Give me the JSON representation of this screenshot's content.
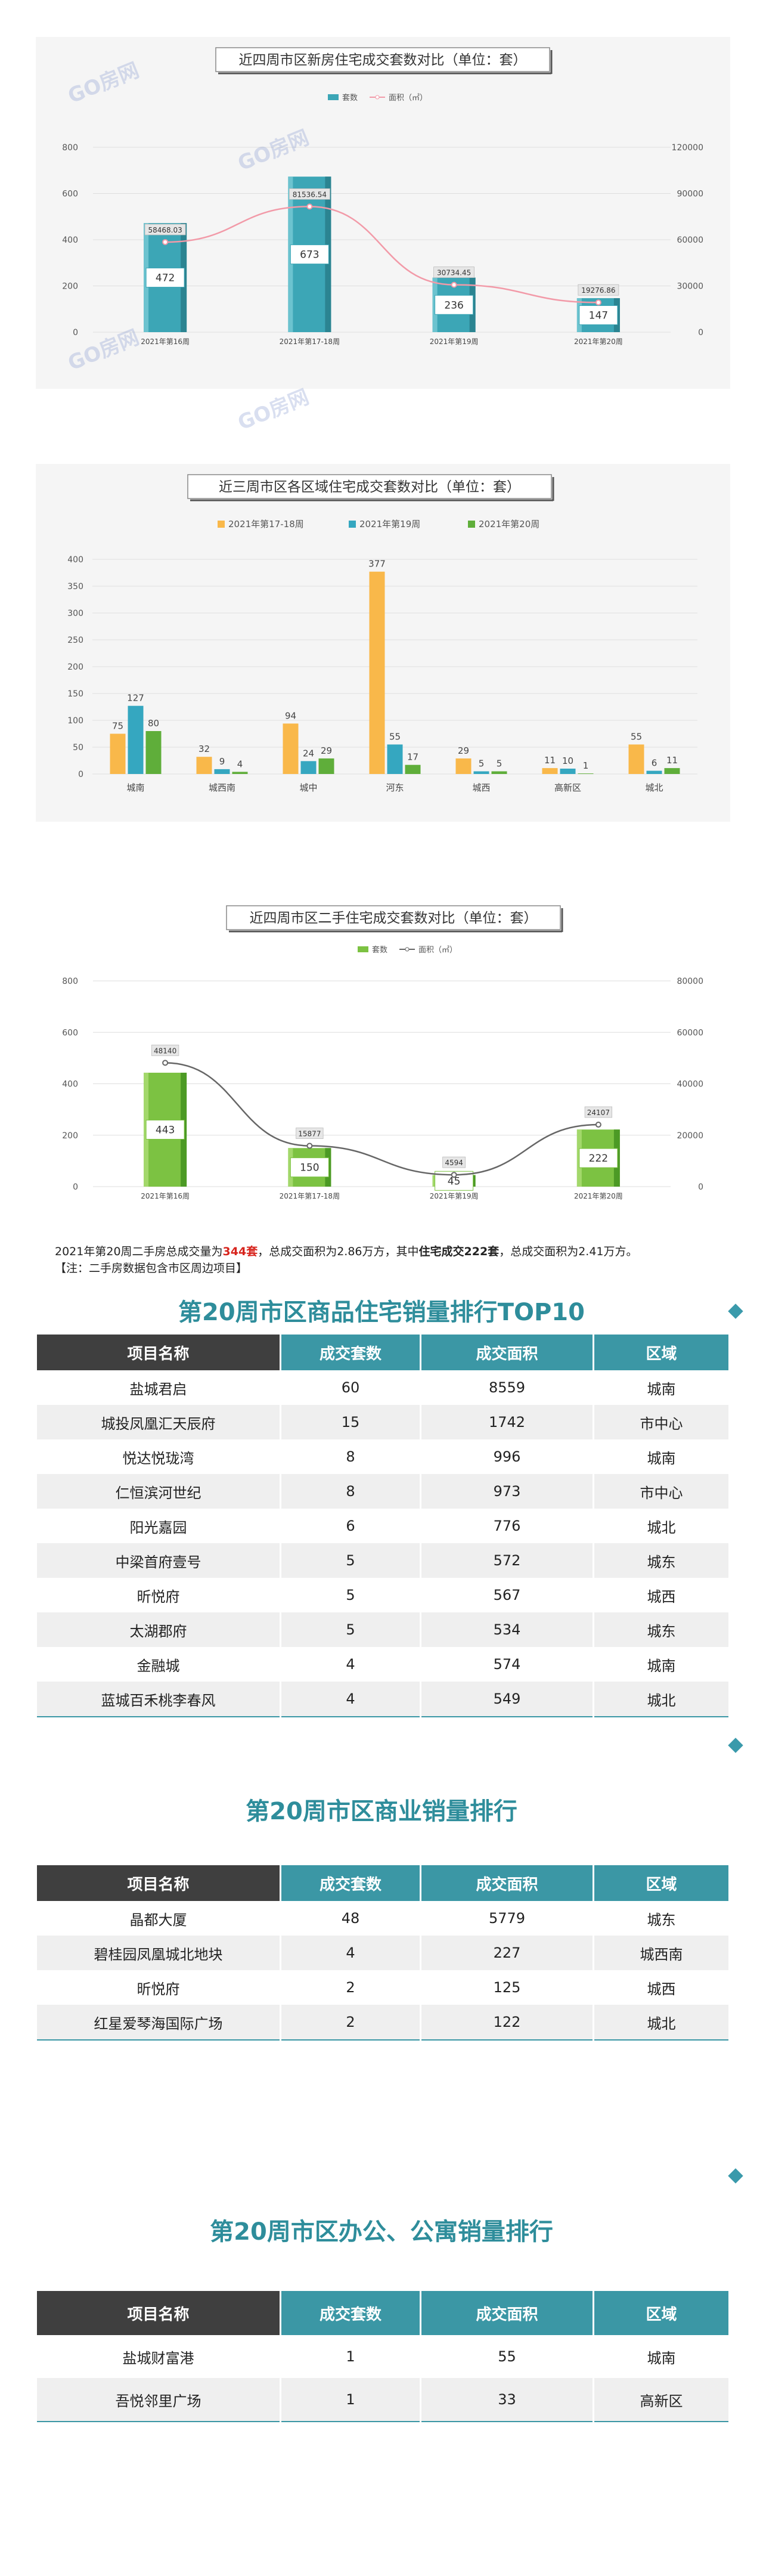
{
  "watermarks": [
    "GO房网",
    "GO房网",
    "GO房网",
    "GO房网"
  ],
  "chart_data": [
    {
      "type": "bar+line",
      "title": "近四周市区新房住宅成交套数对比（单位：套）",
      "categories": [
        "2021年第16周",
        "2021年第17-18周",
        "2021年第19周",
        "2021年第20周"
      ],
      "series": [
        {
          "name": "套数",
          "kind": "bar",
          "values": [
            472,
            673,
            236,
            147
          ],
          "color": "#3ca6b6"
        },
        {
          "name": "面积（㎡）",
          "kind": "line",
          "axis": "right",
          "values": [
            58468.03,
            81536.54,
            30734.45,
            19276.86
          ],
          "color": "#f29aa8"
        }
      ],
      "ylim": [
        0,
        800
      ],
      "yticks": [
        0,
        200,
        400,
        600,
        800
      ],
      "y2lim": [
        0,
        120000
      ],
      "y2ticks": [
        0,
        30000,
        60000,
        90000,
        120000
      ],
      "legend": "top-center"
    },
    {
      "type": "grouped-bar",
      "title": "近三周市区各区域住宅成交套数对比（单位：套）",
      "categories": [
        "城南",
        "城西南",
        "城中",
        "河东",
        "城西",
        "高新区",
        "城北"
      ],
      "series": [
        {
          "name": "2021年第17-18周",
          "values": [
            75,
            32,
            94,
            377,
            29,
            11,
            55
          ],
          "color": "#f9b84a"
        },
        {
          "name": "2021年第19周",
          "values": [
            127,
            9,
            24,
            55,
            5,
            10,
            6
          ],
          "color": "#35a7c0"
        },
        {
          "name": "2021年第20周",
          "values": [
            80,
            4,
            29,
            17,
            5,
            1,
            11
          ],
          "color": "#5fae3a"
        }
      ],
      "ylim": [
        0,
        400
      ],
      "yticks": [
        0,
        50,
        100,
        150,
        200,
        250,
        300,
        350,
        400
      ],
      "legend": "top-center"
    },
    {
      "type": "bar+line",
      "title": "近四周市区二手住宅成交套数对比（单位：套）",
      "categories": [
        "2021年第16周",
        "2021年第17-18周",
        "2021年第19周",
        "2021年第20周"
      ],
      "series": [
        {
          "name": "套数",
          "kind": "bar",
          "values": [
            443,
            150,
            45,
            222
          ],
          "color": "#7cc242"
        },
        {
          "name": "面积（㎡）",
          "kind": "line",
          "axis": "right",
          "values": [
            48140,
            15877,
            4594,
            24107
          ],
          "color": "#666666"
        }
      ],
      "ylim": [
        0,
        800
      ],
      "yticks": [
        0,
        200,
        400,
        600,
        800
      ],
      "y2lim": [
        0,
        80000
      ],
      "y2ticks": [
        0,
        20000,
        40000,
        60000,
        80000
      ],
      "legend": "top-center"
    }
  ],
  "summary": {
    "part1": "2021年第20周二手房总成交量为",
    "total": "344套",
    "part2": "，总成交面积为2.86万方，其中",
    "res": "住宅成交222套",
    "part3": "，总成交面积为2.41万方。",
    "note": "【注：二手房数据包含市区周边项目】"
  },
  "sections": [
    {
      "title": "第20周市区商品住宅销量排行TOP10",
      "headers": [
        "项目名称",
        "成交套数",
        "成交面积",
        "区域"
      ],
      "rows": [
        [
          "盐城君启",
          "60",
          "8559",
          "城南"
        ],
        [
          "城投凤凰汇天辰府",
          "15",
          "1742",
          "市中心"
        ],
        [
          "悦达悦珑湾",
          "8",
          "996",
          "城南"
        ],
        [
          "仁恒滨河世纪",
          "8",
          "973",
          "市中心"
        ],
        [
          "阳光嘉园",
          "6",
          "776",
          "城北"
        ],
        [
          "中梁首府壹号",
          "5",
          "572",
          "城东"
        ],
        [
          "昕悦府",
          "5",
          "567",
          "城西"
        ],
        [
          "太湖郡府",
          "5",
          "534",
          "城东"
        ],
        [
          "金融城",
          "4",
          "574",
          "城南"
        ],
        [
          "蓝城百禾桃李春风",
          "4",
          "549",
          "城北"
        ]
      ]
    },
    {
      "title": "第20周市区商业销量排行",
      "headers": [
        "项目名称",
        "成交套数",
        "成交面积",
        "区域"
      ],
      "rows": [
        [
          "晶都大厦",
          "48",
          "5779",
          "城东"
        ],
        [
          "碧桂园凤凰城北地块",
          "4",
          "227",
          "城西南"
        ],
        [
          "昕悦府",
          "2",
          "125",
          "城西"
        ],
        [
          "红星爱琴海国际广场",
          "2",
          "122",
          "城北"
        ]
      ]
    },
    {
      "title": "第20周市区办公、公寓销量排行",
      "headers": [
        "项目名称",
        "成交套数",
        "成交面积",
        "区域"
      ],
      "rows": [
        [
          "盐城财富港",
          "1",
          "55",
          "城南"
        ],
        [
          "吾悦邻里广场",
          "1",
          "33",
          "高新区"
        ]
      ]
    }
  ]
}
